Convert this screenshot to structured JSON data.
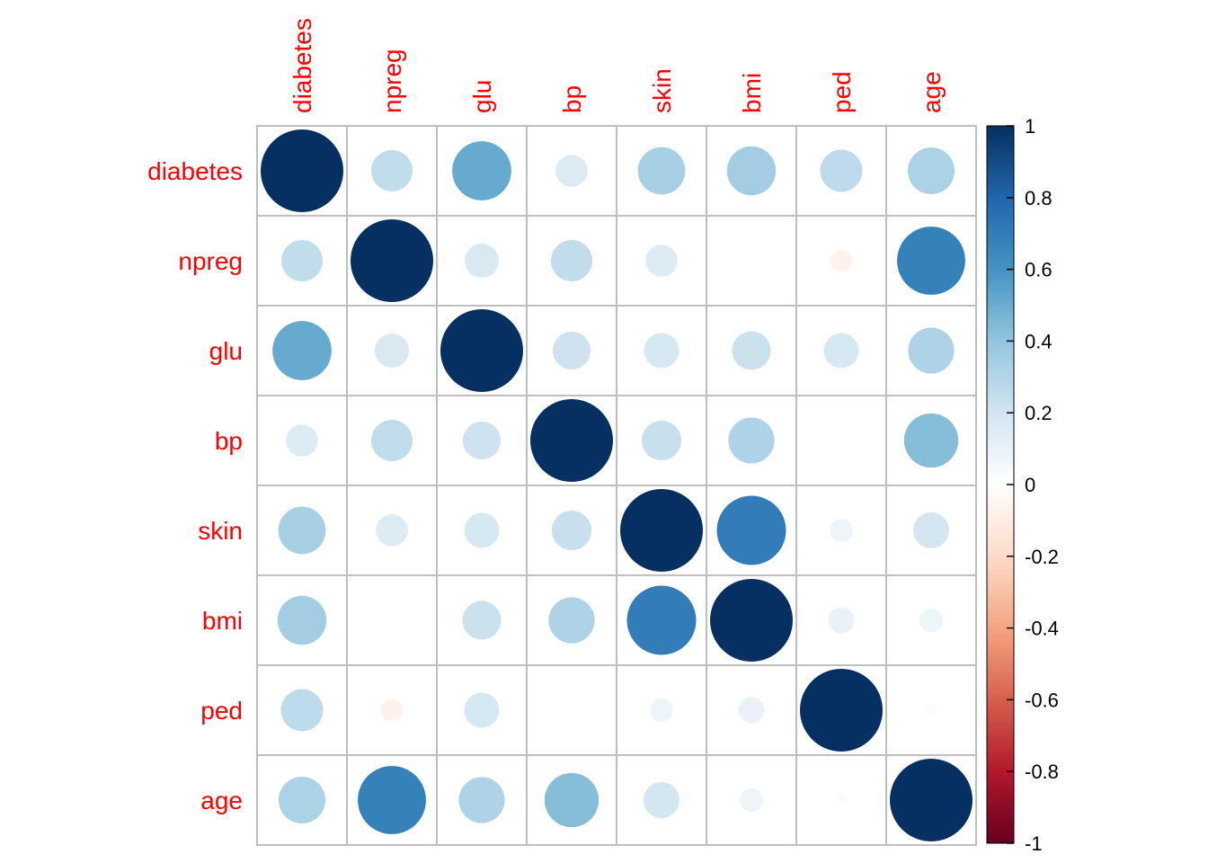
{
  "chart_data": {
    "type": "heatmap",
    "variables": [
      "diabetes",
      "npreg",
      "glu",
      "bp",
      "skin",
      "bmi",
      "ped",
      "age"
    ],
    "matrix": [
      [
        1.0,
        0.25,
        0.51,
        0.15,
        0.33,
        0.35,
        0.26,
        0.32
      ],
      [
        0.25,
        1.0,
        0.17,
        0.25,
        0.15,
        0.0,
        -0.07,
        0.68
      ],
      [
        0.51,
        0.17,
        1.0,
        0.21,
        0.18,
        0.22,
        0.18,
        0.31
      ],
      [
        0.15,
        0.25,
        0.21,
        1.0,
        0.23,
        0.31,
        0.0,
        0.43
      ],
      [
        0.33,
        0.15,
        0.18,
        0.23,
        1.0,
        0.7,
        0.08,
        0.19
      ],
      [
        0.35,
        0.0,
        0.22,
        0.31,
        0.7,
        1.0,
        0.1,
        0.08
      ],
      [
        0.26,
        -0.07,
        0.18,
        0.0,
        0.08,
        0.1,
        1.0,
        0.02
      ],
      [
        0.32,
        0.68,
        0.31,
        0.43,
        0.19,
        0.08,
        0.02,
        1.0
      ]
    ],
    "colorbar": {
      "ticks": [
        "1",
        "0.8",
        "0.6",
        "0.4",
        "0.2",
        "0",
        "-0.2",
        "-0.4",
        "-0.6",
        "-0.8",
        "-1"
      ],
      "range": [
        -1,
        1
      ]
    },
    "colors": {
      "label": "#ff0000",
      "grid": "#bebebe",
      "neg_strong": "#67001f",
      "neutral": "#ffffff",
      "pos_strong": "#053061"
    }
  }
}
